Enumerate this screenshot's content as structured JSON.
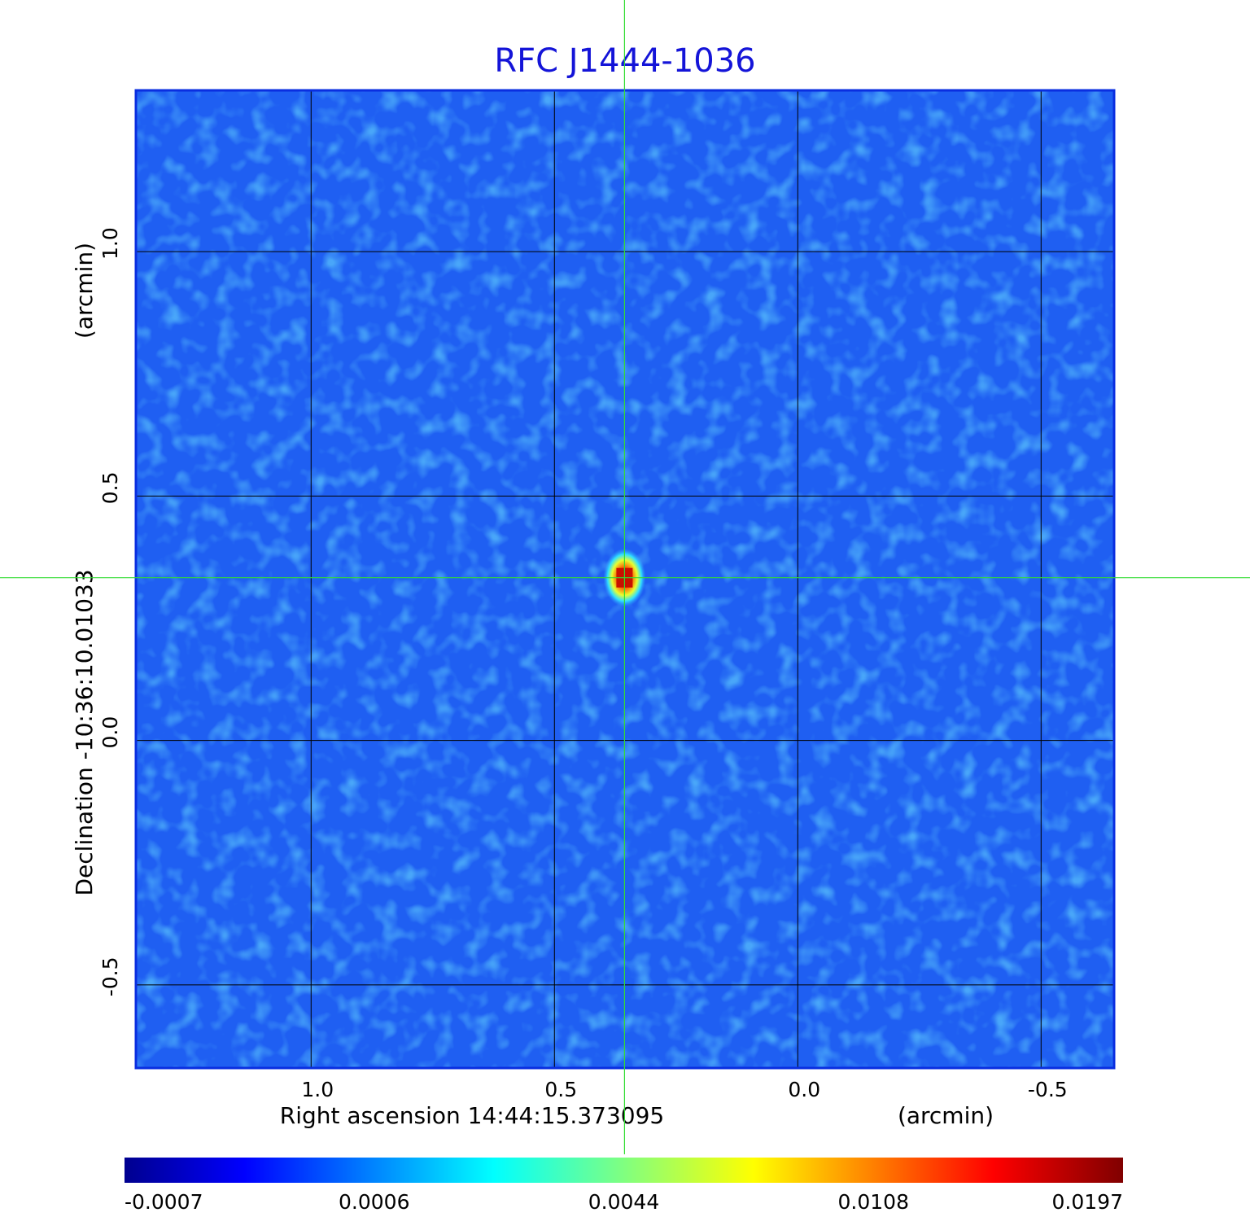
{
  "chart_data": {
    "type": "image",
    "title": "RFC J1444-1036",
    "xlabel": "Right ascension  14:44:15.373095",
    "xunit": "(arcmin)",
    "ylabel": "Declination  -10:36:10.01033",
    "yunit": "(arcmin)",
    "xlim": [
      1.36,
      -0.65
    ],
    "ylim": [
      -0.67,
      1.33
    ],
    "xticks": [
      {
        "value": 1,
        "label": "1.0"
      },
      0.5,
      {
        "value": 0,
        "label": "0.0"
      },
      -0.5
    ],
    "yticks": [
      {
        "value": -0.5,
        "label": "-0.5"
      },
      {
        "value": 0,
        "label": "0.0"
      },
      0.5,
      {
        "value": 1,
        "label": "1.0"
      }
    ],
    "grid": true,
    "source": {
      "x": 0.356,
      "y": 0.333
    },
    "colorbar_ticks": [
      -0.0007,
      0.0006,
      0.0044,
      0.0108,
      0.0197
    ]
  }
}
